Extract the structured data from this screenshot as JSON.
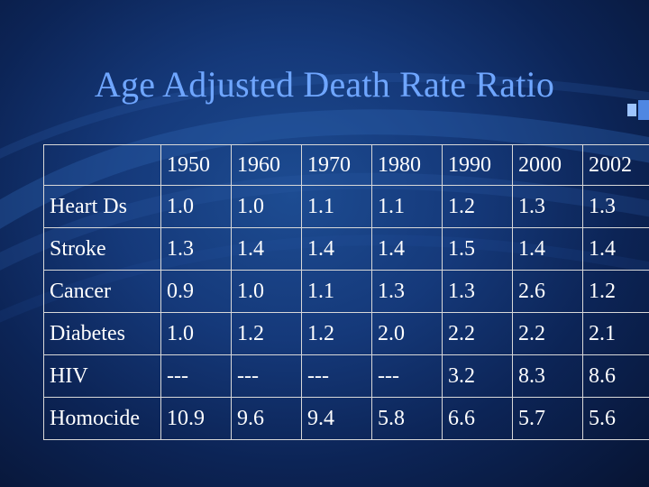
{
  "slide": {
    "title": "Age Adjusted Death Rate Ratio"
  },
  "table": {
    "corner": "",
    "years": [
      "1950",
      "1960",
      "1970",
      "1980",
      "1990",
      "2000",
      "2002"
    ],
    "rows": [
      {
        "label": "Heart Ds",
        "values": [
          "1.0",
          "1.0",
          "1.1",
          "1.1",
          "1.2",
          "1.3",
          "1.3"
        ]
      },
      {
        "label": "Stroke",
        "values": [
          "1.3",
          "1.4",
          "1.4",
          "1.4",
          "1.5",
          "1.4",
          "1.4"
        ]
      },
      {
        "label": "Cancer",
        "values": [
          "0.9",
          "1.0",
          "1.1",
          "1.3",
          "1.3",
          "2.6",
          "1.2"
        ]
      },
      {
        "label": "Diabetes",
        "values": [
          "1.0",
          "1.2",
          "1.2",
          "2.0",
          "2.2",
          "2.2",
          "2.1"
        ]
      },
      {
        "label": "HIV",
        "values": [
          "---",
          "---",
          "---",
          "---",
          "3.2",
          "8.3",
          "8.6"
        ]
      },
      {
        "label": "Homocide",
        "values": [
          "10.9",
          "9.6",
          "9.4",
          "5.8",
          "6.6",
          "5.7",
          "5.6"
        ]
      }
    ]
  },
  "colors": {
    "background": "#15397a",
    "title": "#6fa6ff",
    "text": "#ffffff",
    "grid": "#d8d8d8"
  }
}
